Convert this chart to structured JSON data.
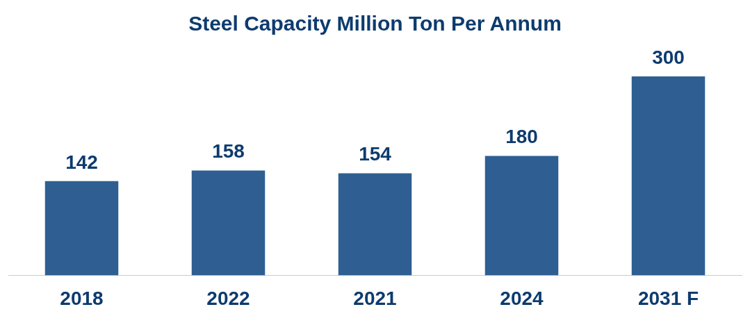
{
  "chart_data": {
    "type": "bar",
    "title": "Steel Capacity Million Ton Per Annum",
    "categories": [
      "2018",
      "2022",
      "2021",
      "2024",
      "2031 F"
    ],
    "values": [
      142,
      158,
      154,
      180,
      300
    ],
    "color": "#2f5f92",
    "data_labels": true,
    "grid": false,
    "legend": false
  }
}
